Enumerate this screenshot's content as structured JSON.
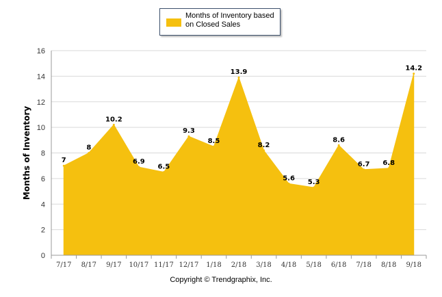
{
  "chart_data": {
    "type": "area",
    "categories": [
      "7/17",
      "8/17",
      "9/17",
      "10/17",
      "11/17",
      "12/17",
      "1/18",
      "2/18",
      "3/18",
      "4/18",
      "5/18",
      "6/18",
      "7/18",
      "8/18",
      "9/18"
    ],
    "series": [
      {
        "name": "Months of Inventory based on Closed Sales",
        "values": [
          7,
          8,
          10.2,
          6.9,
          6.5,
          9.3,
          8.5,
          13.9,
          8.2,
          5.6,
          5.3,
          8.6,
          6.7,
          6.8,
          14.2
        ],
        "data_labels": [
          "7",
          "8",
          "10.2",
          "6.9",
          "6.5",
          "9.3",
          "8.5",
          "13.9",
          "8.2",
          "5.6",
          "5.3",
          "8.6",
          "6.7",
          "6.8",
          "14.2"
        ]
      }
    ],
    "ylabel": "Months of Inventory",
    "xlabel": "",
    "ylim": [
      0,
      16
    ],
    "yticks": [
      0,
      2,
      4,
      6,
      8,
      10,
      12,
      14,
      16
    ],
    "grid": true,
    "legend_position": "top-center",
    "colors": {
      "fill": "#F5C00F",
      "grid": "#d9d9d9",
      "axis": "#9a9a9a"
    }
  },
  "legend": {
    "label": "Months of Inventory based on Closed Sales"
  },
  "footer": {
    "copyright": "Copyright © Trendgraphix, Inc."
  }
}
